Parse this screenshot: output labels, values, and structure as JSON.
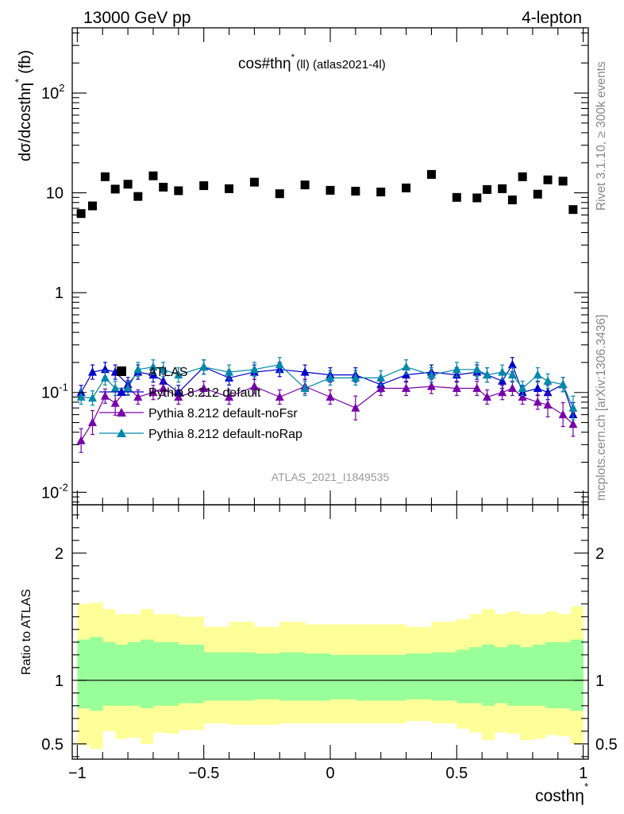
{
  "header": {
    "left": "13000 GeV pp",
    "right": "4-lepton",
    "side_top": "Rivet 3.1.10, ≥ 300k events",
    "side_bottom": "mcplots.cern.ch [arXiv:1306.3436]"
  },
  "chart_data": [
    {
      "type": "scatter",
      "panel": "main",
      "title": "cos#thη* (ll) (atlas2021-4l)",
      "title_main": "cos#thη",
      "title_sup": "*",
      "title_sub": "(ll) (atlas2021-4l)",
      "ylabel": "dσ/dcosthη* (fb)",
      "ylabel_main": "dσ/dcosthη",
      "ylabel_sup": "*",
      "ylabel_unit": "(fb)",
      "yscale": "log",
      "ylim": [
        0.0075,
        450
      ],
      "xlim": [
        -1.02,
        1.02
      ],
      "y_ticks": [
        {
          "value": 0.01,
          "label": "10",
          "sup": "-2"
        },
        {
          "value": 0.1,
          "label": "10",
          "sup": "-1"
        },
        {
          "value": 1,
          "label": "1",
          "sup": ""
        },
        {
          "value": 10,
          "label": "10",
          "sup": ""
        },
        {
          "value": 100,
          "label": "10",
          "sup": "2"
        }
      ],
      "watermark": "ATLAS_2021_I1849535",
      "legend_position": "middle-left",
      "x": [
        -0.985,
        -0.94,
        -0.89,
        -0.85,
        -0.8,
        -0.76,
        -0.7,
        -0.66,
        -0.6,
        -0.5,
        -0.4,
        -0.3,
        -0.2,
        -0.1,
        0.0,
        0.1,
        0.2,
        0.3,
        0.4,
        0.5,
        0.58,
        0.62,
        0.68,
        0.72,
        0.76,
        0.82,
        0.86,
        0.92,
        0.96
      ],
      "series": [
        {
          "name": "ATLAS",
          "marker": "square",
          "color": "#000000",
          "values": [
            6.2,
            7.4,
            14.5,
            10.9,
            12.2,
            9.2,
            14.8,
            11.4,
            10.5,
            11.8,
            11.0,
            12.8,
            9.8,
            12.0,
            10.6,
            10.4,
            10.2,
            11.2,
            15.3,
            9.0,
            8.9,
            10.8,
            11.0,
            8.5,
            14.5,
            9.7,
            13.5,
            13.1,
            6.8
          ]
        },
        {
          "name": "Pythia 8.212 default",
          "marker": "triangle",
          "color": "#0000cc",
          "values": [
            0.1,
            0.16,
            0.17,
            0.16,
            0.12,
            0.16,
            0.15,
            0.13,
            0.1,
            0.18,
            0.14,
            0.16,
            0.17,
            0.16,
            0.15,
            0.15,
            0.12,
            0.15,
            0.16,
            0.15,
            0.16,
            0.15,
            0.13,
            0.19,
            0.1,
            0.11,
            0.1,
            0.12,
            0.06
          ]
        },
        {
          "name": "Pythia 8.212 default-noFsr",
          "marker": "triangle",
          "color": "#7700aa",
          "values": [
            0.033,
            0.05,
            0.092,
            0.078,
            0.112,
            0.09,
            0.1,
            0.11,
            0.09,
            0.11,
            0.09,
            0.115,
            0.09,
            0.115,
            0.09,
            0.07,
            0.11,
            0.11,
            0.115,
            0.11,
            0.11,
            0.09,
            0.1,
            0.11,
            0.09,
            0.08,
            0.075,
            0.06,
            0.048
          ]
        },
        {
          "name": "Pythia 8.212 default-noRap",
          "marker": "triangle",
          "color": "#0088aa",
          "values": [
            0.09,
            0.088,
            0.14,
            0.11,
            0.11,
            0.17,
            0.18,
            0.17,
            0.15,
            0.18,
            0.16,
            0.17,
            0.19,
            0.11,
            0.14,
            0.14,
            0.14,
            0.18,
            0.15,
            0.17,
            0.17,
            0.15,
            0.16,
            0.15,
            0.11,
            0.15,
            0.13,
            0.12,
            0.07
          ]
        }
      ]
    },
    {
      "type": "area",
      "panel": "ratio",
      "ylabel": "Ratio to ATLAS",
      "xlabel": "costhη*",
      "xlabel_main": "costhη",
      "xlabel_sup": "*",
      "ylim": [
        0.38,
        2.38
      ],
      "xlim": [
        -1.02,
        1.02
      ],
      "y_ticks": [
        0.5,
        1,
        2
      ],
      "y_tick_labels": [
        "0.5",
        "1",
        "2"
      ],
      "x_ticks": [
        -1,
        -0.5,
        0,
        0.5,
        1
      ],
      "x_tick_labels": [
        "−1",
        "−0.5",
        "0",
        "0.5",
        "1"
      ],
      "reference_line": 1,
      "bin_edges": [
        -1.0,
        -0.95,
        -0.9,
        -0.85,
        -0.8,
        -0.75,
        -0.7,
        -0.65,
        -0.6,
        -0.5,
        -0.4,
        -0.3,
        -0.2,
        -0.1,
        0.0,
        0.1,
        0.2,
        0.3,
        0.4,
        0.5,
        0.55,
        0.6,
        0.65,
        0.7,
        0.75,
        0.8,
        0.85,
        0.9,
        0.95,
        1.0
      ],
      "bands": [
        {
          "name": "Total uncertainty",
          "color": "#ffff99",
          "upper": [
            1.6,
            1.61,
            1.56,
            1.52,
            1.52,
            1.56,
            1.52,
            1.52,
            1.5,
            1.42,
            1.46,
            1.42,
            1.46,
            1.44,
            1.44,
            1.44,
            1.44,
            1.42,
            1.46,
            1.48,
            1.52,
            1.56,
            1.52,
            1.54,
            1.52,
            1.52,
            1.54,
            1.52,
            1.58
          ],
          "lower": [
            0.49,
            0.46,
            0.6,
            0.54,
            0.55,
            0.5,
            0.59,
            0.58,
            0.61,
            0.66,
            0.65,
            0.65,
            0.66,
            0.66,
            0.66,
            0.66,
            0.66,
            0.68,
            0.66,
            0.62,
            0.59,
            0.53,
            0.59,
            0.58,
            0.53,
            0.54,
            0.57,
            0.56,
            0.5
          ]
        },
        {
          "name": "Statistical uncertainty",
          "color": "#99ff99",
          "upper": [
            1.32,
            1.34,
            1.3,
            1.28,
            1.3,
            1.32,
            1.3,
            1.3,
            1.28,
            1.22,
            1.22,
            1.21,
            1.22,
            1.21,
            1.2,
            1.2,
            1.2,
            1.21,
            1.22,
            1.24,
            1.26,
            1.28,
            1.26,
            1.28,
            1.26,
            1.28,
            1.3,
            1.3,
            1.32
          ],
          "lower": [
            0.78,
            0.76,
            0.8,
            0.8,
            0.8,
            0.78,
            0.8,
            0.8,
            0.82,
            0.84,
            0.84,
            0.85,
            0.84,
            0.84,
            0.85,
            0.84,
            0.84,
            0.85,
            0.84,
            0.82,
            0.82,
            0.8,
            0.82,
            0.8,
            0.8,
            0.8,
            0.78,
            0.78,
            0.76
          ]
        }
      ]
    }
  ]
}
